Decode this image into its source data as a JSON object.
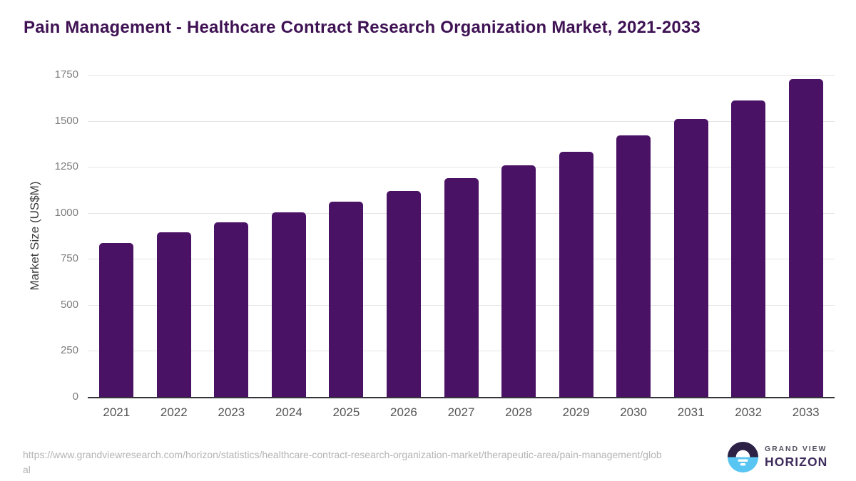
{
  "title": "Pain Management - Healthcare Contract Research Organization Market, 2021-2033",
  "chart_data": {
    "type": "bar",
    "title": "Pain Management - Healthcare Contract Research Organization Market, 2021-2033",
    "categories": [
      "2021",
      "2022",
      "2023",
      "2024",
      "2025",
      "2026",
      "2027",
      "2028",
      "2029",
      "2030",
      "2031",
      "2032",
      "2033"
    ],
    "values": [
      836,
      894,
      949,
      1002,
      1061,
      1120,
      1188,
      1257,
      1333,
      1420,
      1509,
      1612,
      1728
    ],
    "xlabel": "",
    "ylabel": "Market Size (US$M)",
    "ylim": [
      0,
      1750
    ],
    "yticks": [
      0,
      250,
      500,
      750,
      1000,
      1250,
      1500,
      1750
    ],
    "grid": true,
    "legend": "none",
    "bar_color": "#4a1265"
  },
  "footer": {
    "source_url": "https://www.grandviewresearch.com/horizon/statistics/healthcare-contract-research-organization-market/therapeutic-area/pain-management/global"
  },
  "logo": {
    "brand_top": "GRAND VIEW",
    "brand_bottom": "HORIZON",
    "icon_dark_color": "#2d2145",
    "icon_blue_color": "#58c5f2"
  },
  "colors": {
    "title_text": "#3f1254",
    "axis_line": "#35333c",
    "gridline": "#e4e4e4"
  }
}
